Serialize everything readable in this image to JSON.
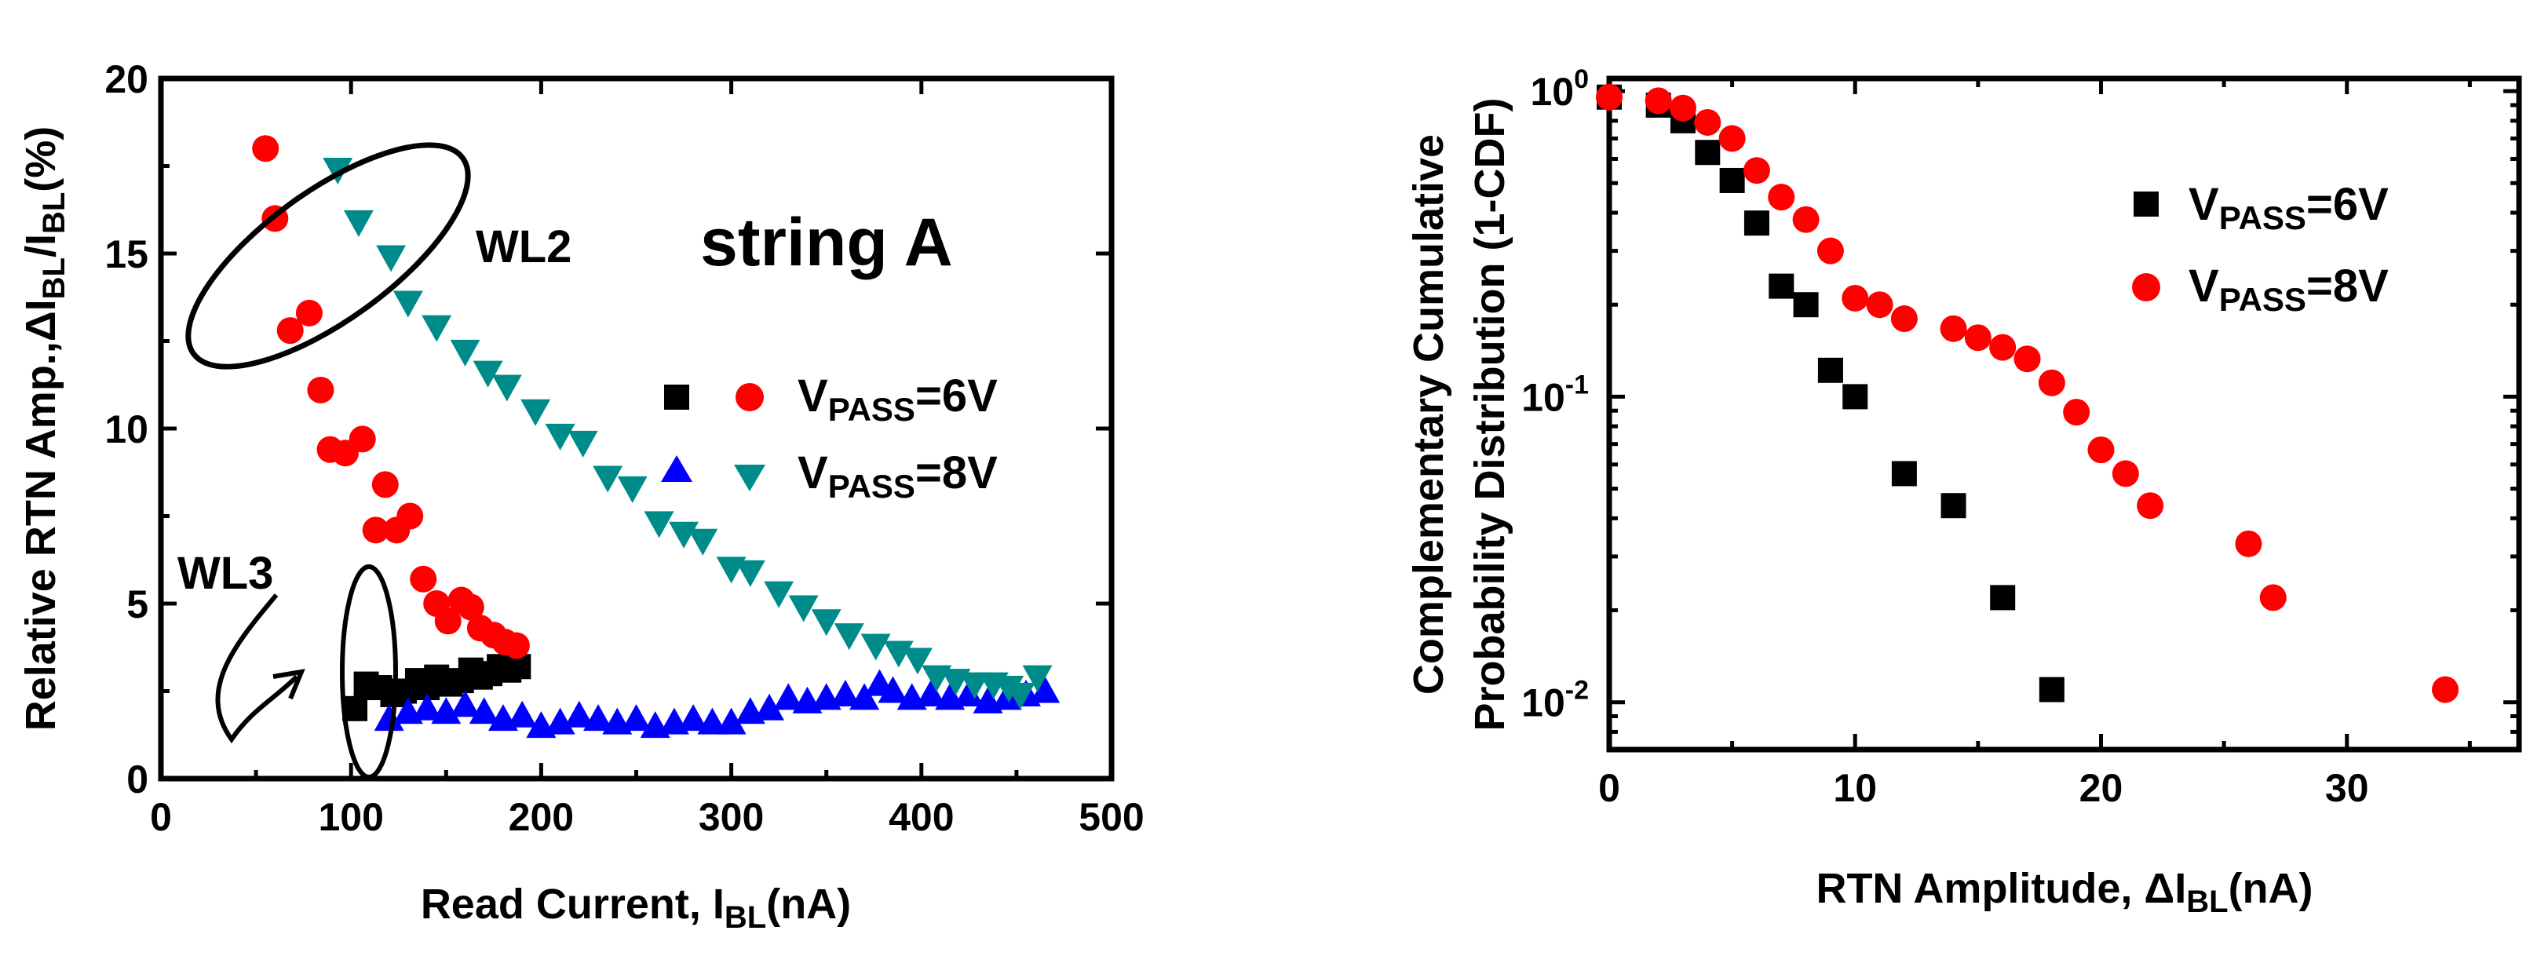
{
  "chart_data": [
    {
      "type": "scatter",
      "xlabel": "Read Current, I_BL(nA)",
      "xlabel_main": "Read Current, I",
      "xlabel_sub": "BL",
      "xlabel_tail": "(nA)",
      "ylabel": "Relative RTN Amp.,ΔI_BL/I_BL(%)",
      "ylabel_main": "Relative RTN Amp.,ΔI",
      "ylabel_sub1": "BL",
      "ylabel_mid": "/I",
      "ylabel_sub2": "BL",
      "ylabel_tail": "(%)",
      "xlim": [
        0,
        500
      ],
      "ylim": [
        0,
        20
      ],
      "xticks": [
        "0",
        "100",
        "200",
        "300",
        "400",
        "500"
      ],
      "yticks": [
        "0",
        "5",
        "10",
        "15",
        "20"
      ],
      "legend_placement": "center-right",
      "legend": {
        "row1": {
          "prefix": "V",
          "sub": "PASS",
          "suffix": "=6V"
        },
        "row2": {
          "prefix": "V",
          "sub": "PASS",
          "suffix": "=8V"
        }
      },
      "annotations": {
        "string": "string A",
        "wl2": "WL2",
        "wl3": "WL3"
      },
      "series": [
        {
          "key": "wl3_6v",
          "marker": "square",
          "color": "#000000",
          "points": [
            [
              102,
              2.0
            ],
            [
              108,
              2.7
            ],
            [
              115,
              2.6
            ],
            [
              122,
              2.4
            ],
            [
              128,
              2.5
            ],
            [
              135,
              2.8
            ],
            [
              140,
              2.6
            ],
            [
              145,
              2.9
            ],
            [
              152,
              2.7
            ],
            [
              158,
              2.8
            ],
            [
              163,
              3.1
            ],
            [
              168,
              2.9
            ],
            [
              173,
              3.0
            ],
            [
              178,
              3.2
            ],
            [
              183,
              3.1
            ],
            [
              188,
              3.2
            ]
          ]
        },
        {
          "key": "wl2_6v",
          "marker": "circle",
          "color": "#ff0000",
          "points": [
            [
              55,
              18.0
            ],
            [
              60,
              16.0
            ],
            [
              68,
              12.8
            ],
            [
              78,
              13.3
            ],
            [
              84,
              11.1
            ],
            [
              89,
              9.4
            ],
            [
              97,
              9.3
            ],
            [
              106,
              9.7
            ],
            [
              113,
              7.1
            ],
            [
              118,
              8.4
            ],
            [
              124,
              7.1
            ],
            [
              131,
              7.5
            ],
            [
              138,
              5.7
            ],
            [
              145,
              5.0
            ],
            [
              151,
              4.5
            ],
            [
              158,
              5.1
            ],
            [
              163,
              4.9
            ],
            [
              168,
              4.3
            ],
            [
              175,
              4.1
            ],
            [
              181,
              3.9
            ],
            [
              187,
              3.8
            ]
          ]
        },
        {
          "key": "wl3_8v",
          "marker": "triangle-up",
          "color": "#0000ff",
          "points": [
            [
              120,
              1.7
            ],
            [
              130,
              1.9
            ],
            [
              140,
              2.0
            ],
            [
              150,
              1.9
            ],
            [
              160,
              2.1
            ],
            [
              170,
              1.9
            ],
            [
              180,
              1.7
            ],
            [
              190,
              1.8
            ],
            [
              200,
              1.5
            ],
            [
              210,
              1.6
            ],
            [
              220,
              1.8
            ],
            [
              230,
              1.7
            ],
            [
              240,
              1.6
            ],
            [
              250,
              1.7
            ],
            [
              260,
              1.5
            ],
            [
              270,
              1.6
            ],
            [
              280,
              1.7
            ],
            [
              290,
              1.6
            ],
            [
              300,
              1.6
            ],
            [
              310,
              1.9
            ],
            [
              320,
              2.0
            ],
            [
              330,
              2.3
            ],
            [
              340,
              2.2
            ],
            [
              350,
              2.3
            ],
            [
              360,
              2.4
            ],
            [
              370,
              2.3
            ],
            [
              378,
              2.7
            ],
            [
              385,
              2.5
            ],
            [
              395,
              2.3
            ],
            [
              405,
              2.4
            ],
            [
              415,
              2.3
            ],
            [
              425,
              2.4
            ],
            [
              435,
              2.2
            ],
            [
              445,
              2.3
            ],
            [
              455,
              2.4
            ],
            [
              465,
              2.5
            ]
          ]
        },
        {
          "key": "wl2_8v",
          "marker": "triangle-down",
          "color": "#008b8b",
          "points": [
            [
              93,
              17.4
            ],
            [
              104,
              15.9
            ],
            [
              121,
              14.9
            ],
            [
              130,
              13.6
            ],
            [
              145,
              12.9
            ],
            [
              160,
              12.2
            ],
            [
              172,
              11.6
            ],
            [
              182,
              11.2
            ],
            [
              197,
              10.5
            ],
            [
              210,
              9.8
            ],
            [
              222,
              9.6
            ],
            [
              235,
              8.6
            ],
            [
              248,
              8.3
            ],
            [
              262,
              7.3
            ],
            [
              275,
              7.0
            ],
            [
              285,
              6.8
            ],
            [
              300,
              6.0
            ],
            [
              310,
              5.9
            ],
            [
              325,
              5.3
            ],
            [
              338,
              4.9
            ],
            [
              350,
              4.5
            ],
            [
              362,
              4.1
            ],
            [
              376,
              3.8
            ],
            [
              388,
              3.6
            ],
            [
              398,
              3.4
            ],
            [
              408,
              2.9
            ],
            [
              418,
              2.8
            ],
            [
              428,
              2.7
            ],
            [
              438,
              2.7
            ],
            [
              446,
              2.6
            ],
            [
              452,
              2.4
            ],
            [
              461,
              2.9
            ]
          ]
        }
      ]
    },
    {
      "type": "scatter",
      "xlabel": "RTN Amplitude, ΔI_BL(nA)",
      "xlabel_main": "RTN Amplitude, ΔI",
      "xlabel_sub": "BL",
      "xlabel_tail": "(nA)",
      "ylabel_line1": "Complementary Cumulative",
      "ylabel_line2": "Probability Distribution (1-CDF)",
      "xlim": [
        0,
        37
      ],
      "ylim": [
        0.007,
        1.1
      ],
      "yscale": "log",
      "xticks": [
        "0",
        "10",
        "20",
        "30"
      ],
      "xtick_values": [
        0,
        10,
        20,
        30
      ],
      "yticks": [
        {
          "value": 1,
          "base": "10",
          "exp": "0"
        },
        {
          "value": 0.1,
          "base": "10",
          "exp": "-1"
        },
        {
          "value": 0.01,
          "base": "10",
          "exp": "-2"
        }
      ],
      "legend_placement": "top-right",
      "legend": [
        {
          "prefix": "V",
          "sub": "PASS",
          "suffix": "=6V",
          "marker": "square",
          "color": "#000000"
        },
        {
          "prefix": "V",
          "sub": "PASS",
          "suffix": "=8V",
          "marker": "circle",
          "color": "#ff0000"
        }
      ],
      "series": [
        {
          "name": "VPASS=6V",
          "marker": "square",
          "color": "#000000",
          "points": [
            [
              0,
              0.956
            ],
            [
              2,
              0.9
            ],
            [
              3,
              0.8
            ],
            [
              4,
              0.63
            ],
            [
              5,
              0.51
            ],
            [
              6,
              0.37
            ],
            [
              7,
              0.23
            ],
            [
              8,
              0.2
            ],
            [
              9,
              0.122
            ],
            [
              10,
              0.1
            ],
            [
              12,
              0.056
            ],
            [
              14,
              0.044
            ],
            [
              16,
              0.022
            ],
            [
              18,
              0.011
            ]
          ]
        },
        {
          "name": "VPASS=8V",
          "marker": "circle",
          "color": "#ff0000",
          "points": [
            [
              0,
              0.956
            ],
            [
              2,
              0.93
            ],
            [
              3,
              0.88
            ],
            [
              4,
              0.79
            ],
            [
              5,
              0.7
            ],
            [
              6,
              0.55
            ],
            [
              7,
              0.45
            ],
            [
              8,
              0.38
            ],
            [
              9,
              0.3
            ],
            [
              10,
              0.21
            ],
            [
              11,
              0.2
            ],
            [
              12,
              0.18
            ],
            [
              14,
              0.167
            ],
            [
              15,
              0.156
            ],
            [
              16,
              0.145
            ],
            [
              17,
              0.133
            ],
            [
              18,
              0.111
            ],
            [
              19,
              0.089
            ],
            [
              20,
              0.067
            ],
            [
              21,
              0.056
            ],
            [
              22,
              0.044
            ],
            [
              26,
              0.033
            ],
            [
              27,
              0.022
            ],
            [
              34,
              0.011
            ]
          ]
        }
      ]
    }
  ]
}
